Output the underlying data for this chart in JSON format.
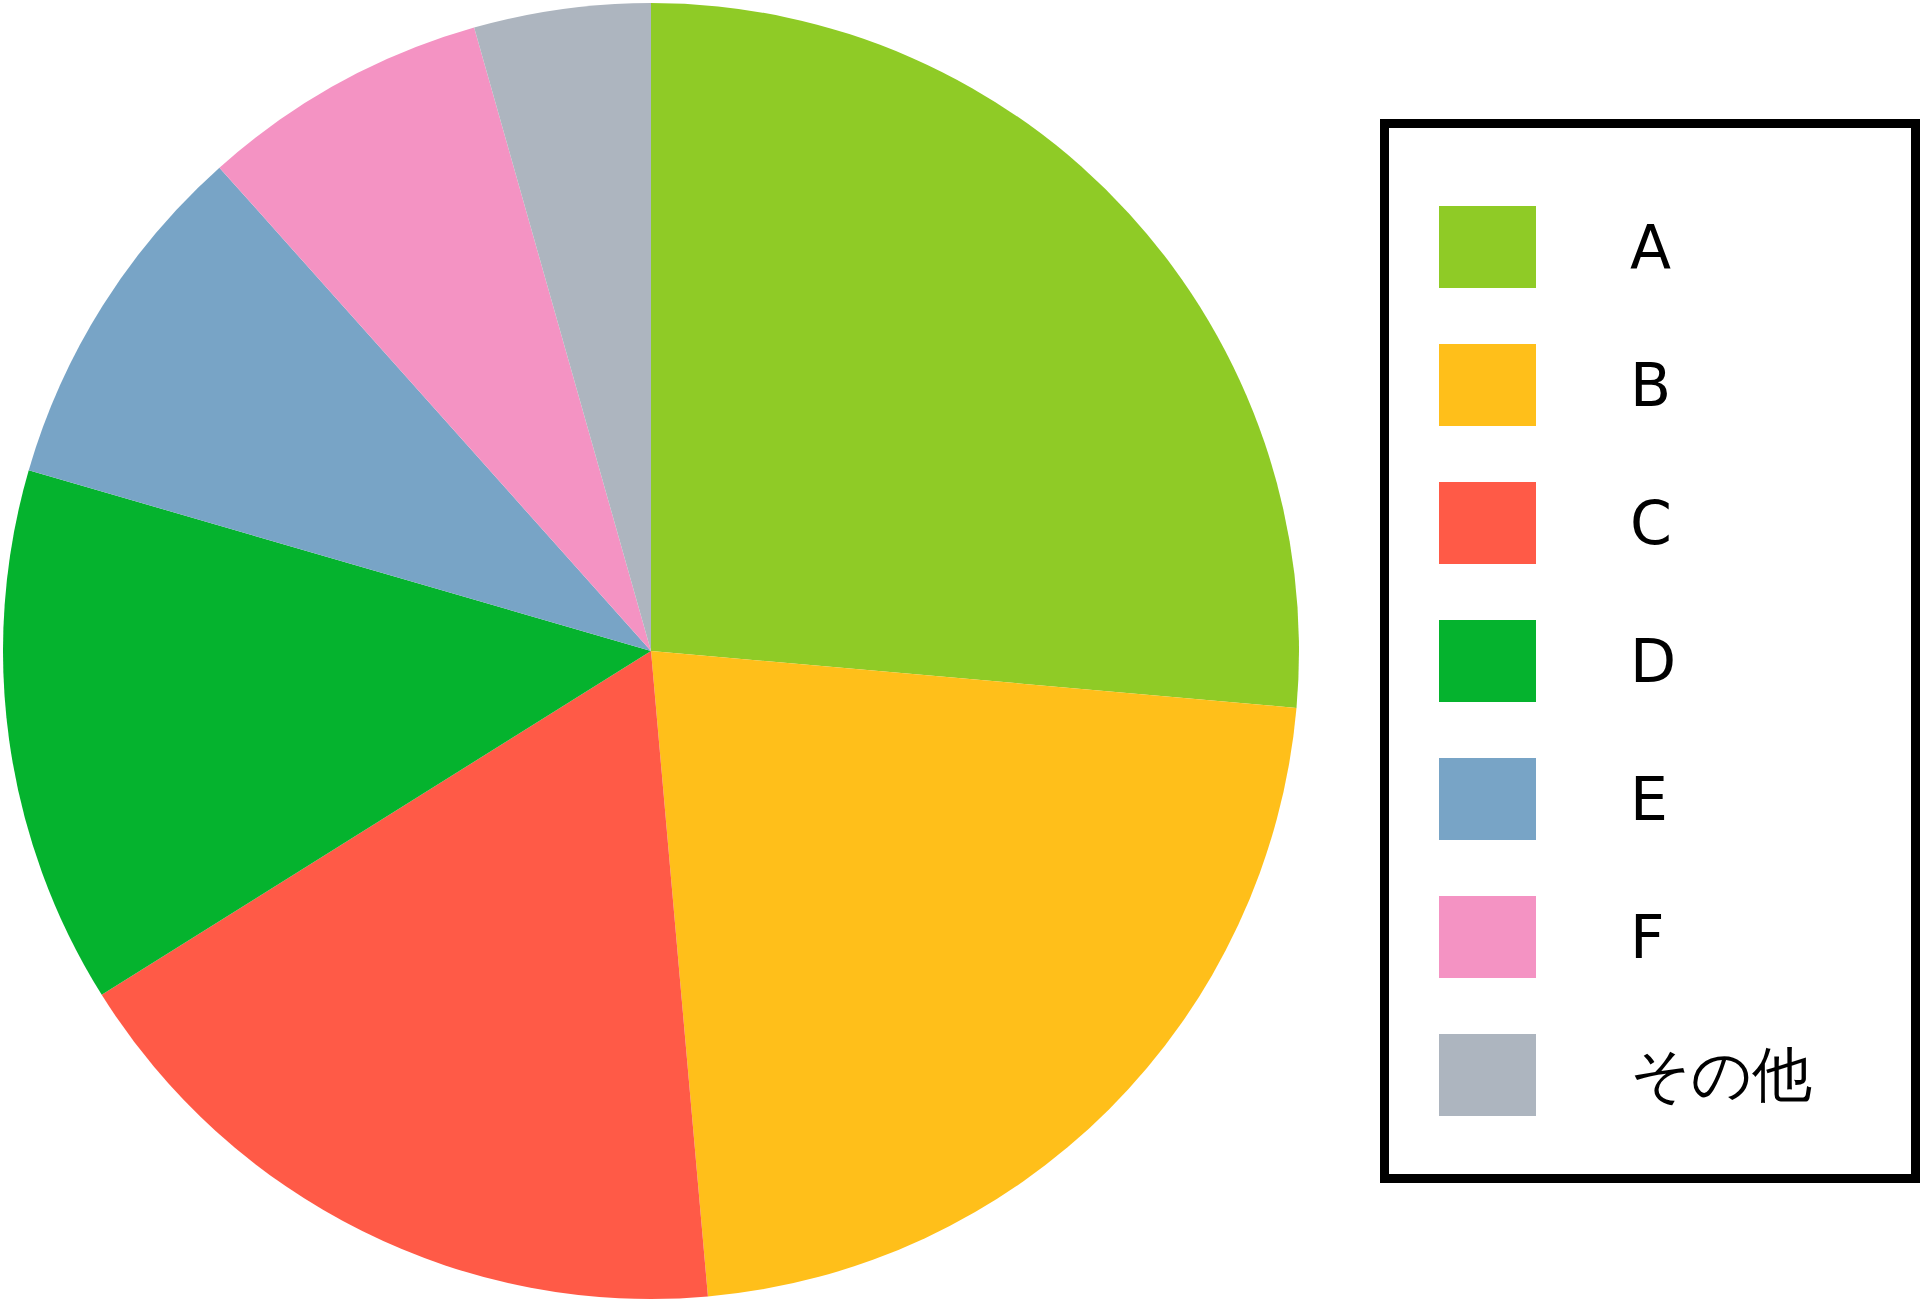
{
  "chart_data": {
    "type": "pie",
    "categories": [
      "A",
      "B",
      "C",
      "D",
      "E",
      "F",
      "その他"
    ],
    "values": [
      26.4,
      22.2,
      17.5,
      13.4,
      8.9,
      7.2,
      4.4
    ],
    "colors": [
      "#8fcb26",
      "#ffbf1a",
      "#ff5a47",
      "#05b32e",
      "#78a4c6",
      "#f493c3",
      "#adb5bf"
    ],
    "legend": "right"
  }
}
